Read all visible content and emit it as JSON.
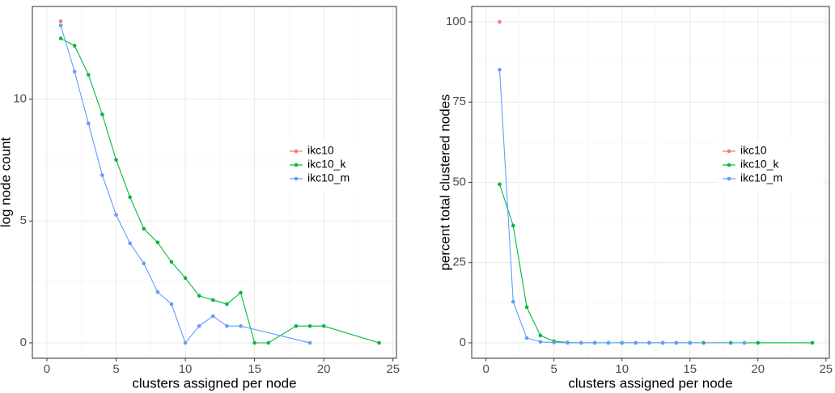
{
  "chart_data": [
    {
      "type": "line",
      "xlabel": "clusters assigned per node",
      "ylabel": "log node count",
      "xlim": [
        -1.05,
        25.25
      ],
      "ylim": [
        -0.63,
        13.8
      ],
      "xticks": [
        0,
        5,
        10,
        15,
        20,
        25
      ],
      "yticks": [
        0,
        5,
        10
      ],
      "grid": true,
      "legend_position": "center right",
      "series": [
        {
          "name": "ikc10",
          "color": "#F8766D",
          "x": [
            1
          ],
          "values": [
            13.19
          ]
        },
        {
          "name": "ikc10_k",
          "color": "#00BA38",
          "x": [
            1,
            2,
            3,
            4,
            5,
            6,
            7,
            8,
            9,
            10,
            11,
            12,
            13,
            14,
            15,
            16,
            18,
            19,
            20,
            24
          ],
          "values": [
            12.49,
            12.19,
            11.0,
            9.37,
            7.51,
            5.98,
            4.68,
            4.12,
            3.32,
            2.66,
            1.93,
            1.76,
            1.59,
            2.06,
            0,
            0,
            0.69,
            0.69,
            0.69,
            0
          ]
        },
        {
          "name": "ikc10_m",
          "color": "#619CFF",
          "x": [
            1,
            2,
            3,
            4,
            5,
            6,
            7,
            8,
            9,
            10,
            11,
            12,
            13,
            14,
            19
          ],
          "values": [
            13.02,
            11.13,
            9.0,
            6.88,
            5.25,
            4.09,
            3.26,
            2.09,
            1.59,
            0,
            0.69,
            1.1,
            0.69,
            0.69,
            0
          ]
        }
      ]
    },
    {
      "type": "line",
      "xlabel": "clusters assigned per node",
      "ylabel": "percent total clustered nodes",
      "xlim": [
        -1.05,
        25.25
      ],
      "ylim": [
        -4.8,
        104.8
      ],
      "xticks": [
        0,
        5,
        10,
        15,
        20,
        25
      ],
      "yticks": [
        0,
        25,
        50,
        75,
        100
      ],
      "grid": true,
      "legend_position": "center right",
      "series": [
        {
          "name": "ikc10",
          "color": "#F8766D",
          "x": [
            1
          ],
          "values": [
            100
          ]
        },
        {
          "name": "ikc10_k",
          "color": "#00BA38",
          "x": [
            1,
            2,
            3,
            4,
            5,
            6,
            7,
            8,
            9,
            10,
            11,
            12,
            13,
            14,
            15,
            16,
            18,
            19,
            20,
            24
          ],
          "values": [
            49.4,
            36.5,
            11.1,
            2.3,
            0.5,
            0.1,
            0,
            0,
            0,
            0,
            0,
            0,
            0,
            0,
            0,
            0,
            0,
            0,
            0,
            0
          ]
        },
        {
          "name": "ikc10_m",
          "color": "#619CFF",
          "x": [
            1,
            2,
            3,
            4,
            5,
            6,
            7,
            8,
            9,
            10,
            11,
            12,
            13,
            14,
            15,
            19
          ],
          "values": [
            85.1,
            12.8,
            1.5,
            0.3,
            0.1,
            0,
            0,
            0,
            0,
            0,
            0,
            0,
            0,
            0,
            0,
            0
          ]
        }
      ]
    }
  ]
}
